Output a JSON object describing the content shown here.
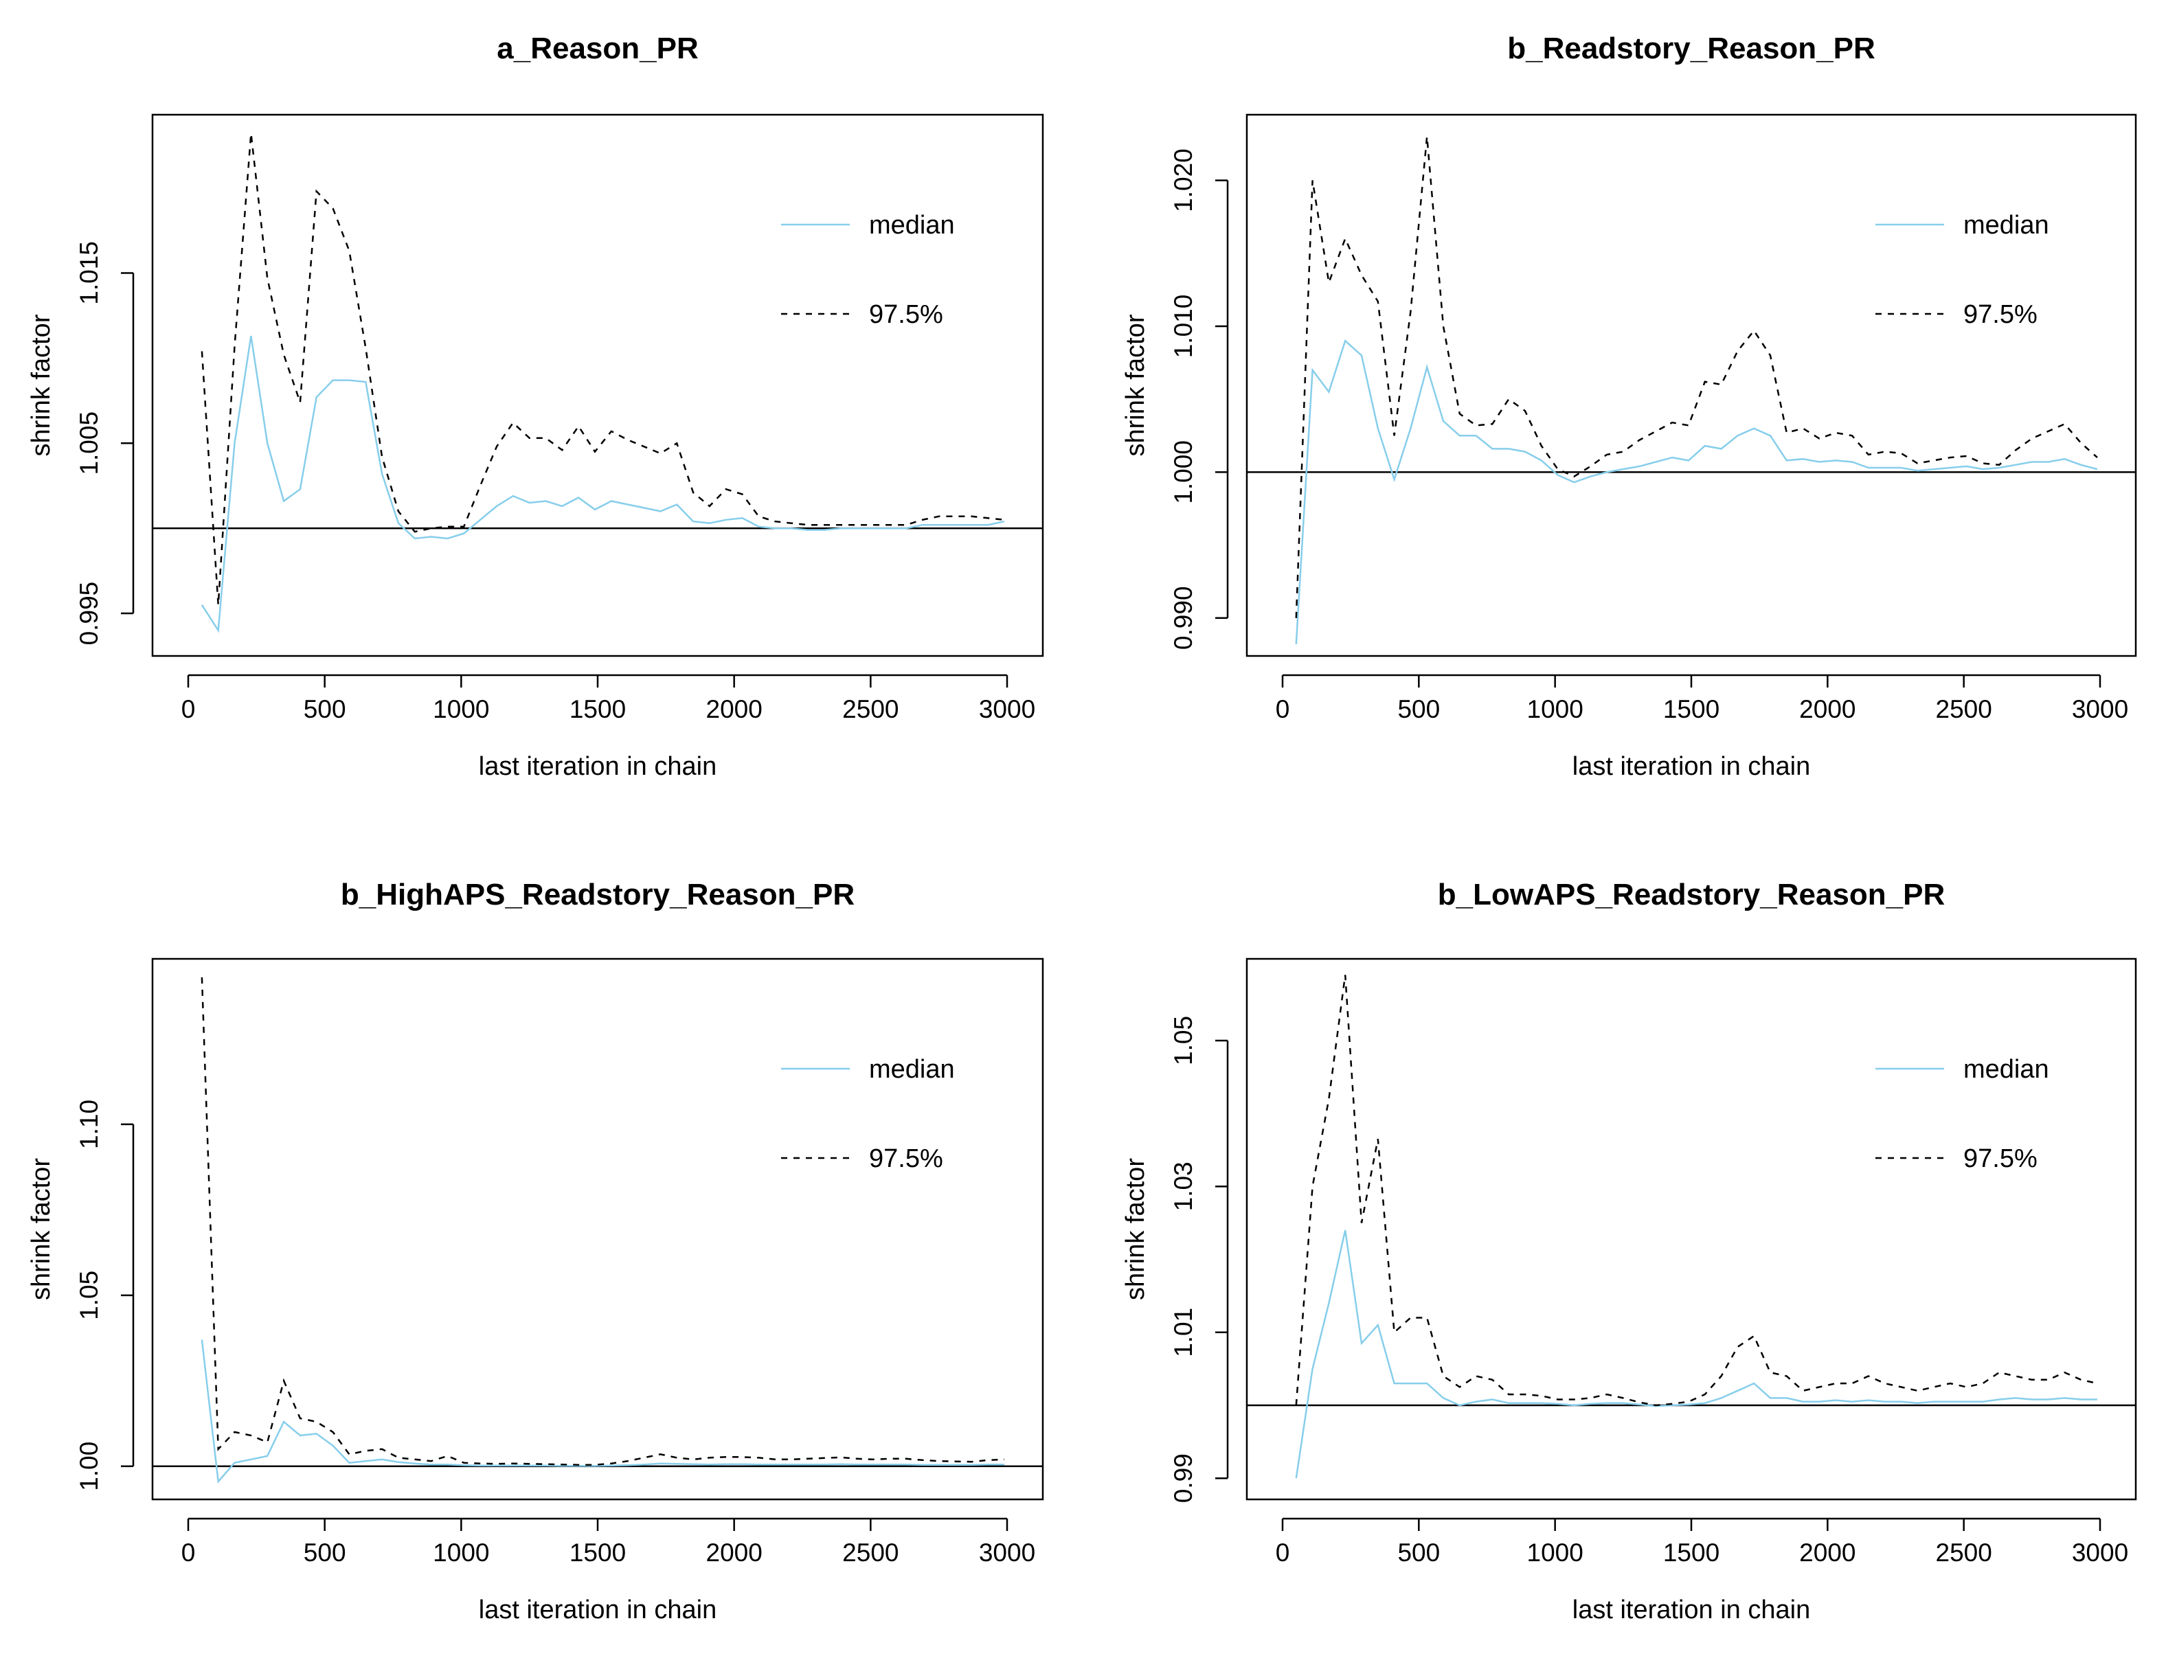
{
  "colors": {
    "median": "#87ceeb",
    "quantile": "#000000",
    "reference": "#000000",
    "frame": "#000000"
  },
  "chart_data": [
    {
      "type": "line",
      "title": "a_Reason_PR",
      "xlabel": "last iteration in chain",
      "ylabel": "shrink factor",
      "xlim": [
        0,
        3000
      ],
      "ylim": [
        0.9925,
        1.0243
      ],
      "xticks": [
        0,
        500,
        1000,
        1500,
        2000,
        2500,
        3000
      ],
      "xtick_labels": [
        "0",
        "500",
        "1000",
        "1500",
        "2000",
        "2500",
        "3000"
      ],
      "yticks": [
        0.995,
        1.005,
        1.015
      ],
      "ytick_labels": [
        "0.995",
        "1.005",
        "1.015"
      ],
      "reference_line": 1.0,
      "legend": {
        "position": "top-right",
        "entries": [
          "median",
          "97.5%"
        ]
      },
      "x": [
        50,
        110,
        170,
        230,
        290,
        350,
        410,
        470,
        530,
        590,
        650,
        710,
        770,
        830,
        890,
        950,
        1010,
        1070,
        1130,
        1190,
        1250,
        1310,
        1370,
        1430,
        1490,
        1550,
        1610,
        1670,
        1730,
        1790,
        1850,
        1910,
        1970,
        2030,
        2090,
        2150,
        2210,
        2270,
        2330,
        2390,
        2450,
        2510,
        2570,
        2630,
        2690,
        2750,
        2810,
        2870,
        2930,
        2990
      ],
      "series": [
        {
          "name": "median",
          "values": [
            0.9955,
            0.994,
            1.005,
            1.0113,
            1.005,
            1.0016,
            1.0023,
            1.0077,
            1.0087,
            1.0087,
            1.0086,
            1.0032,
            1.0003,
            0.9994,
            0.9995,
            0.9994,
            0.9997,
            1.0005,
            1.0013,
            1.0019,
            1.0015,
            1.0016,
            1.0013,
            1.0018,
            1.0011,
            1.0016,
            1.0014,
            1.0012,
            1.001,
            1.0014,
            1.0004,
            1.0003,
            1.0005,
            1.0006,
            1.0001,
            1.0,
            1.0,
            0.9999,
            0.9999,
            1.0,
            1.0,
            1.0,
            1.0,
            1.0,
            1.0002,
            1.0002,
            1.0002,
            1.0002,
            1.0002,
            1.0004
          ]
        },
        {
          "name": "97.5%",
          "values": [
            1.0104,
            0.9955,
            1.0107,
            1.0232,
            1.0147,
            1.0102,
            1.0074,
            1.0198,
            1.0188,
            1.0163,
            1.0106,
            1.0042,
            1.001,
            0.9998,
            1.0,
            1.0001,
            1.0001,
            1.0025,
            1.0048,
            1.0062,
            1.0053,
            1.0053,
            1.0046,
            1.006,
            1.0045,
            1.0057,
            1.0052,
            1.0048,
            1.0044,
            1.005,
            1.0021,
            1.0013,
            1.0023,
            1.002,
            1.0007,
            1.0004,
            1.0003,
            1.0002,
            1.0002,
            1.0002,
            1.0002,
            1.0002,
            1.0002,
            1.0002,
            1.0005,
            1.0007,
            1.0007,
            1.0007,
            1.0006,
            1.0005
          ]
        }
      ]
    },
    {
      "type": "line",
      "title": "b_Readstory_Reason_PR",
      "xlabel": "last iteration in chain",
      "ylabel": "shrink factor",
      "xlim": [
        0,
        3000
      ],
      "ylim": [
        0.9874,
        1.0245
      ],
      "xticks": [
        0,
        500,
        1000,
        1500,
        2000,
        2500,
        3000
      ],
      "xtick_labels": [
        "0",
        "500",
        "1000",
        "1500",
        "2000",
        "2500",
        "3000"
      ],
      "yticks": [
        0.99,
        1.0,
        1.01,
        1.02
      ],
      "ytick_labels": [
        "0.990",
        "1.000",
        "1.010",
        "1.020"
      ],
      "reference_line": 1.0,
      "legend": {
        "position": "top-right",
        "entries": [
          "median",
          "97.5%"
        ]
      },
      "x": [
        50,
        110,
        170,
        230,
        290,
        350,
        410,
        470,
        530,
        590,
        650,
        710,
        770,
        830,
        890,
        950,
        1010,
        1070,
        1130,
        1190,
        1250,
        1310,
        1370,
        1430,
        1490,
        1550,
        1610,
        1670,
        1730,
        1790,
        1850,
        1910,
        1970,
        2030,
        2090,
        2150,
        2210,
        2270,
        2330,
        2390,
        2450,
        2510,
        2570,
        2630,
        2690,
        2750,
        2810,
        2870,
        2930,
        2990
      ],
      "series": [
        {
          "name": "median",
          "values": [
            0.9882,
            1.007,
            1.0055,
            1.009,
            1.008,
            1.003,
            0.9995,
            1.003,
            1.0072,
            1.0035,
            1.0025,
            1.0025,
            1.0016,
            1.0016,
            1.0014,
            1.0008,
            0.9998,
            0.9993,
            0.9997,
            1.0,
            1.0002,
            1.0004,
            1.0007,
            1.001,
            1.0008,
            1.0018,
            1.0016,
            1.0025,
            1.003,
            1.0025,
            1.0008,
            1.0009,
            1.0007,
            1.0008,
            1.0007,
            1.0003,
            1.0003,
            1.0003,
            1.0001,
            1.0002,
            1.0003,
            1.0004,
            1.0002,
            1.0003,
            1.0005,
            1.0007,
            1.0007,
            1.0009,
            1.0005,
            1.0002
          ]
        },
        {
          "name": "97.5%",
          "values": [
            0.99,
            1.02,
            1.013,
            1.016,
            1.0135,
            1.0117,
            1.0025,
            1.011,
            1.023,
            1.01,
            1.004,
            1.0032,
            1.0033,
            1.005,
            1.0042,
            1.0018,
            1.0002,
            0.9997,
            1.0004,
            1.0012,
            1.0014,
            1.0022,
            1.0028,
            1.0034,
            1.0032,
            1.0062,
            1.006,
            1.0083,
            1.0097,
            1.008,
            1.0027,
            1.003,
            1.0023,
            1.0027,
            1.0025,
            1.0012,
            1.0014,
            1.0013,
            1.0006,
            1.0008,
            1.001,
            1.0011,
            1.0006,
            1.0005,
            1.0015,
            1.0023,
            1.0028,
            1.0033,
            1.002,
            1.001
          ]
        }
      ]
    },
    {
      "type": "line",
      "title": "b_HighAPS_Readstory_Reason_PR",
      "xlabel": "last iteration in chain",
      "ylabel": "shrink factor",
      "xlim": [
        0,
        3000
      ],
      "ylim": [
        0.9903,
        1.1484
      ],
      "xticks": [
        0,
        500,
        1000,
        1500,
        2000,
        2500,
        3000
      ],
      "xtick_labels": [
        "0",
        "500",
        "1000",
        "1500",
        "2000",
        "2500",
        "3000"
      ],
      "yticks": [
        1.0,
        1.05,
        1.1
      ],
      "ytick_labels": [
        "1.00",
        "1.05",
        "1.10"
      ],
      "reference_line": 1.0,
      "legend": {
        "position": "top-right",
        "entries": [
          "median",
          "97.5%"
        ]
      },
      "x": [
        50,
        110,
        170,
        230,
        290,
        350,
        410,
        470,
        530,
        590,
        650,
        710,
        770,
        830,
        890,
        950,
        1010,
        1070,
        1130,
        1190,
        1250,
        1310,
        1370,
        1430,
        1490,
        1550,
        1610,
        1670,
        1730,
        1790,
        1850,
        1910,
        1970,
        2030,
        2090,
        2150,
        2210,
        2270,
        2330,
        2390,
        2450,
        2510,
        2570,
        2630,
        2690,
        2750,
        2810,
        2870,
        2930,
        2990
      ],
      "series": [
        {
          "name": "median",
          "values": [
            1.037,
            0.9955,
            1.001,
            1.002,
            1.003,
            1.013,
            1.009,
            1.0095,
            1.006,
            1.001,
            1.0015,
            1.002,
            1.0012,
            1.0008,
            1.0005,
            1.0005,
            1.0003,
            1.0002,
            1.0002,
            1.0002,
            1.0002,
            1.0002,
            1.0001,
            1.0001,
            1.0001,
            1.0002,
            1.0003,
            1.0005,
            1.0008,
            1.0007,
            1.0006,
            1.0005,
            1.0006,
            1.0006,
            1.0005,
            1.0005,
            1.0005,
            1.0005,
            1.0005,
            1.0006,
            1.0005,
            1.0005,
            1.0005,
            1.0005,
            1.0004,
            1.0004,
            1.0004,
            1.0004,
            1.0005,
            1.0005
          ]
        },
        {
          "name": "97.5%",
          "values": [
            1.143,
            1.005,
            1.01,
            1.009,
            1.007,
            1.025,
            1.014,
            1.013,
            1.01,
            1.0035,
            1.0045,
            1.005,
            1.0025,
            1.002,
            1.0015,
            1.003,
            1.001,
            1.0008,
            1.0007,
            1.0008,
            1.0007,
            1.0006,
            1.0005,
            1.0004,
            1.0004,
            1.0008,
            1.0015,
            1.0025,
            1.0035,
            1.0025,
            1.002,
            1.0025,
            1.0027,
            1.0027,
            1.0025,
            1.002,
            1.002,
            1.0022,
            1.0024,
            1.0026,
            1.0022,
            1.002,
            1.0022,
            1.0022,
            1.0018,
            1.0015,
            1.0014,
            1.0013,
            1.0018,
            1.002
          ]
        }
      ]
    },
    {
      "type": "line",
      "title": "b_LowAPS_Readstory_Reason_PR",
      "xlabel": "last iteration in chain",
      "ylabel": "shrink factor",
      "xlim": [
        0,
        3000
      ],
      "ylim": [
        0.9871,
        1.0612
      ],
      "xticks": [
        0,
        500,
        1000,
        1500,
        2000,
        2500,
        3000
      ],
      "xtick_labels": [
        "0",
        "500",
        "1000",
        "1500",
        "2000",
        "2500",
        "3000"
      ],
      "yticks": [
        0.99,
        1.01,
        1.03,
        1.05
      ],
      "ytick_labels": [
        "0.99",
        "1.01",
        "1.03",
        "1.05"
      ],
      "reference_line": 1.0,
      "legend": {
        "position": "top-right",
        "entries": [
          "median",
          "97.5%"
        ]
      },
      "x": [
        50,
        110,
        170,
        230,
        290,
        350,
        410,
        470,
        530,
        590,
        650,
        710,
        770,
        830,
        890,
        950,
        1010,
        1070,
        1130,
        1190,
        1250,
        1310,
        1370,
        1430,
        1490,
        1550,
        1610,
        1670,
        1730,
        1790,
        1850,
        1910,
        1970,
        2030,
        2090,
        2150,
        2210,
        2270,
        2330,
        2390,
        2450,
        2510,
        2570,
        2630,
        2690,
        2750,
        2810,
        2870,
        2930,
        2990
      ],
      "series": [
        {
          "name": "median",
          "values": [
            0.99,
            1.005,
            1.014,
            1.024,
            1.0085,
            1.011,
            1.003,
            1.003,
            1.003,
            1.001,
            1.0,
            1.0005,
            1.0008,
            1.0003,
            1.0003,
            1.0003,
            1.0002,
            1.0,
            1.0002,
            1.0003,
            1.0003,
            1.0001,
            0.9999,
            1.0,
            1.0001,
            1.0003,
            1.001,
            1.002,
            1.003,
            1.001,
            1.001,
            1.0005,
            1.0005,
            1.0007,
            1.0005,
            1.0007,
            1.0005,
            1.0005,
            1.0003,
            1.0005,
            1.0005,
            1.0005,
            1.0005,
            1.0008,
            1.001,
            1.0008,
            1.0008,
            1.001,
            1.0008,
            1.0008
          ]
        },
        {
          "name": "97.5%",
          "values": [
            1.0,
            1.03,
            1.042,
            1.059,
            1.025,
            1.0365,
            1.01,
            1.012,
            1.012,
            1.004,
            1.0025,
            1.004,
            1.0035,
            1.0015,
            1.0015,
            1.0013,
            1.0008,
            1.0008,
            1.001,
            1.0015,
            1.001,
            1.0004,
            1.0,
            1.0002,
            1.0005,
            1.0015,
            1.004,
            1.008,
            1.0095,
            1.0045,
            1.004,
            1.002,
            1.0025,
            1.003,
            1.003,
            1.004,
            1.003,
            1.0025,
            1.002,
            1.0025,
            1.003,
            1.0025,
            1.003,
            1.0045,
            1.004,
            1.0035,
            1.0035,
            1.0045,
            1.0035,
            1.003
          ]
        }
      ]
    }
  ]
}
